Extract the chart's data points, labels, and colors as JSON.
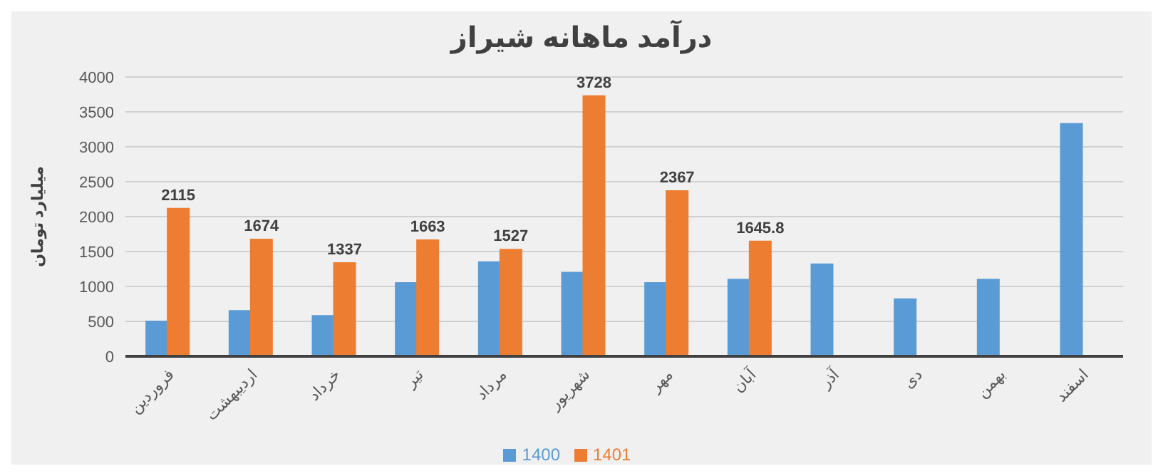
{
  "chart_data": {
    "type": "bar",
    "title": "درآمد ماهانه شیراز",
    "ylabel": "میلیارد تومان",
    "categories": [
      "فروردین",
      "اردیبهشت",
      "خرداد",
      "تیر",
      "مرداد",
      "شهریور",
      "مهر",
      "آبان",
      "آذر",
      "دی",
      "بهمن",
      "اسفند"
    ],
    "series": [
      {
        "name": "1400",
        "color": "#5b9bd5",
        "values": [
          500,
          650,
          580,
          1050,
          1350,
          1200,
          1050,
          1100,
          1320,
          820,
          1100,
          3330
        ]
      },
      {
        "name": "1401",
        "color": "#ed7d31",
        "values": [
          2115,
          1674,
          1337,
          1663,
          1527,
          3728,
          2367,
          1645.8,
          null,
          null,
          null,
          null
        ],
        "value_labels": [
          "2115",
          "1674",
          "1337",
          "1663",
          "1527",
          "3728",
          "2367",
          "1645.8",
          null,
          null,
          null,
          null
        ]
      }
    ],
    "ylim": [
      0,
      4000
    ],
    "yticks": [
      0,
      500,
      1000,
      1500,
      2000,
      2500,
      3000,
      3500,
      4000
    ],
    "grid": "y",
    "legend": "bottom"
  }
}
